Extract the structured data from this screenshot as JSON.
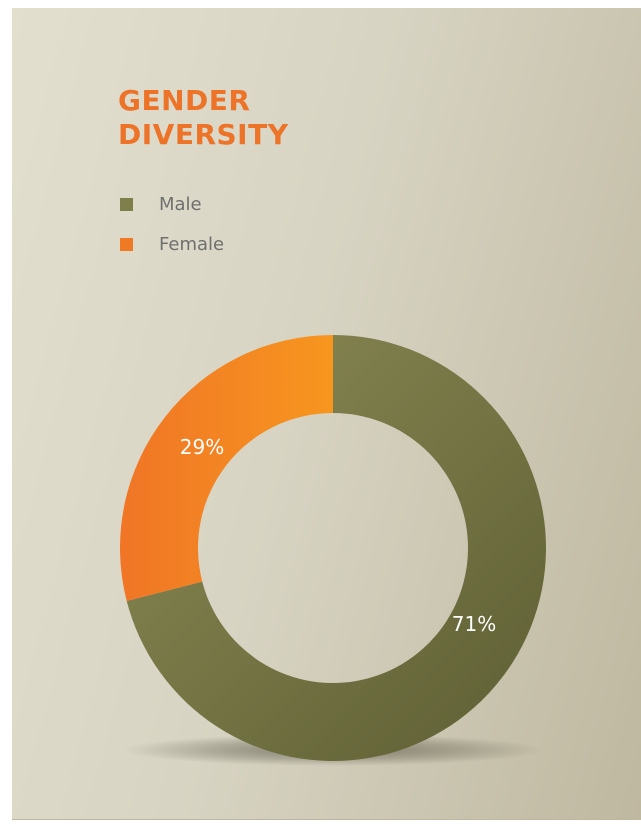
{
  "chart_data": {
    "type": "pie",
    "title": "GENDER\nDIVERSITY",
    "categories": [
      "Male",
      "Female"
    ],
    "values": [
      71,
      29
    ],
    "labels": [
      "71%",
      "29%"
    ],
    "colors": [
      "#7e7f4a",
      "#f07a24"
    ],
    "legend_position": "top-left",
    "donut": true
  },
  "legend": {
    "items": [
      {
        "label": "Male",
        "color": "#7e7f4a"
      },
      {
        "label": "Female",
        "color": "#f07a24"
      }
    ]
  }
}
